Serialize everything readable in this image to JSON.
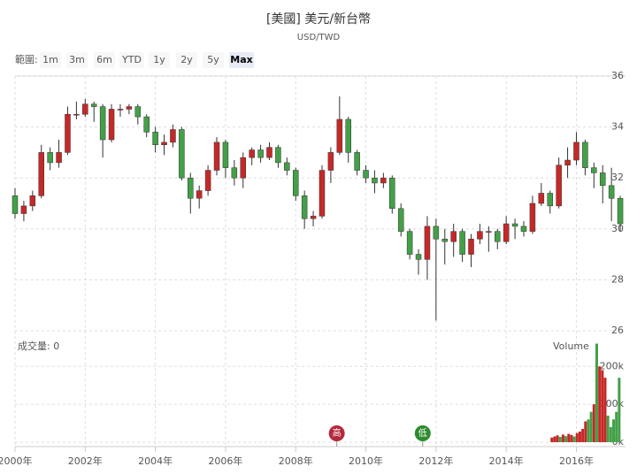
{
  "chart_data": {
    "type": "candlestick",
    "title": "[美國] 美元/新台幣",
    "subtitle": "USD/TWD",
    "range_label": "範圍:",
    "range_buttons": [
      "1m",
      "3m",
      "6m",
      "YTD",
      "1y",
      "2y",
      "5y",
      "Max"
    ],
    "selected_range": "Max",
    "up_color": "#c62828",
    "down_color": "#43a047",
    "x": [
      2000.0,
      2000.25,
      2000.5,
      2000.75,
      2001.0,
      2001.25,
      2001.5,
      2001.75,
      2002.0,
      2002.25,
      2002.5,
      2002.75,
      2003.0,
      2003.25,
      2003.5,
      2003.75,
      2004.0,
      2004.25,
      2004.5,
      2004.75,
      2005.0,
      2005.25,
      2005.5,
      2005.75,
      2006.0,
      2006.25,
      2006.5,
      2006.75,
      2007.0,
      2007.25,
      2007.5,
      2007.75,
      2008.0,
      2008.25,
      2008.5,
      2008.75,
      2009.0,
      2009.25,
      2009.5,
      2009.75,
      2010.0,
      2010.25,
      2010.5,
      2010.75,
      2011.0,
      2011.25,
      2011.5,
      2011.75,
      2012.0,
      2012.25,
      2012.5,
      2012.75,
      2013.0,
      2013.25,
      2013.5,
      2013.75,
      2014.0,
      2014.25,
      2014.5,
      2014.75,
      2015.0,
      2015.25,
      2015.5,
      2015.75,
      2016.0,
      2016.25,
      2016.5,
      2016.75,
      2017.0,
      2017.25
    ],
    "open": [
      31.3,
      30.6,
      30.9,
      31.3,
      33.0,
      32.6,
      33.0,
      34.5,
      34.5,
      34.9,
      34.8,
      33.5,
      34.7,
      34.7,
      34.8,
      34.4,
      33.8,
      33.3,
      33.4,
      33.9,
      32.0,
      31.2,
      31.5,
      32.3,
      33.4,
      32.4,
      32.0,
      32.8,
      33.1,
      32.8,
      33.2,
      32.6,
      32.3,
      31.3,
      30.4,
      30.5,
      32.3,
      33.0,
      34.3,
      33.0,
      32.3,
      32.0,
      31.8,
      32.0,
      30.8,
      29.9,
      29.0,
      28.8,
      30.1,
      29.6,
      29.5,
      29.9,
      29.0,
      29.6,
      29.9,
      29.9,
      29.5,
      30.2,
      30.1,
      29.9,
      31.0,
      31.4,
      30.9,
      32.5,
      32.7,
      33.4,
      32.4,
      32.2,
      31.7,
      31.2
    ],
    "high": [
      31.6,
      31.1,
      31.5,
      33.3,
      33.2,
      33.5,
      34.8,
      35.0,
      35.1,
      35.0,
      34.9,
      34.9,
      34.9,
      34.9,
      34.9,
      34.5,
      34.0,
      33.7,
      34.1,
      34.0,
      32.2,
      31.7,
      32.5,
      33.6,
      33.5,
      32.7,
      33.0,
      33.2,
      33.3,
      33.4,
      33.3,
      32.8,
      32.4,
      31.5,
      30.7,
      32.5,
      33.2,
      35.2,
      34.4,
      33.1,
      32.5,
      32.3,
      32.2,
      32.1,
      31.0,
      30.0,
      29.2,
      30.5,
      30.4,
      30.0,
      30.2,
      30.0,
      29.8,
      30.2,
      30.1,
      30.0,
      30.5,
      30.4,
      30.3,
      31.3,
      31.8,
      31.5,
      32.8,
      33.2,
      33.8,
      33.5,
      32.6,
      32.5,
      32.4,
      31.3
    ],
    "low": [
      30.4,
      30.3,
      30.7,
      31.2,
      32.3,
      32.4,
      32.9,
      34.3,
      34.4,
      34.2,
      32.8,
      33.4,
      34.4,
      34.5,
      34.1,
      33.6,
      33.0,
      32.9,
      33.2,
      31.9,
      30.6,
      30.8,
      31.3,
      32.1,
      32.0,
      31.7,
      31.6,
      32.5,
      32.6,
      32.7,
      32.4,
      32.1,
      31.1,
      30.0,
      30.1,
      30.4,
      31.8,
      32.9,
      32.6,
      32.1,
      31.8,
      31.4,
      31.6,
      30.6,
      29.7,
      28.8,
      28.2,
      28.0,
      26.4,
      28.6,
      28.9,
      28.7,
      28.5,
      29.4,
      29.1,
      29.2,
      29.4,
      29.6,
      29.7,
      29.8,
      30.9,
      30.6,
      30.8,
      32.0,
      32.5,
      32.1,
      31.6,
      31.0,
      30.3,
      29.9
    ],
    "close": [
      30.6,
      30.9,
      31.3,
      33.0,
      32.6,
      33.0,
      34.5,
      34.5,
      34.9,
      34.8,
      33.5,
      34.7,
      34.7,
      34.8,
      34.4,
      33.8,
      33.3,
      33.4,
      33.9,
      32.0,
      31.2,
      31.5,
      32.3,
      33.4,
      32.4,
      32.0,
      32.8,
      33.1,
      32.8,
      33.2,
      32.6,
      32.3,
      31.3,
      30.4,
      30.5,
      32.3,
      33.0,
      34.3,
      33.0,
      32.3,
      32.0,
      31.8,
      32.0,
      30.8,
      29.9,
      29.0,
      28.8,
      30.1,
      29.6,
      29.5,
      29.9,
      29.0,
      29.6,
      29.9,
      29.9,
      29.5,
      30.2,
      30.1,
      29.9,
      31.0,
      31.4,
      30.9,
      32.5,
      32.7,
      33.4,
      32.4,
      32.2,
      31.7,
      31.2,
      30.2
    ],
    "xlim": [
      2000,
      2017.4
    ],
    "xticks": [
      {
        "value": 2000,
        "label": "2000年"
      },
      {
        "value": 2002,
        "label": "2002年"
      },
      {
        "value": 2004,
        "label": "2004年"
      },
      {
        "value": 2006,
        "label": "2006年"
      },
      {
        "value": 2008,
        "label": "2008年"
      },
      {
        "value": 2010,
        "label": "2010年"
      },
      {
        "value": 2012,
        "label": "2012年"
      },
      {
        "value": 2014,
        "label": "2014年"
      },
      {
        "value": 2016,
        "label": "2016年"
      }
    ],
    "ylim": [
      26,
      36
    ],
    "yticks": [
      26,
      28,
      30,
      32,
      34,
      36
    ],
    "grid": true,
    "volume": {
      "label": "成交量: 0",
      "name": "Volume",
      "x": [
        2015.3,
        2015.38,
        2015.46,
        2015.54,
        2015.62,
        2015.7,
        2015.78,
        2015.86,
        2015.94,
        2016.02,
        2016.1,
        2016.18,
        2016.26,
        2016.34,
        2016.42,
        2016.5,
        2016.58,
        2016.66,
        2016.74,
        2016.82,
        2016.9,
        2016.98,
        2017.06,
        2017.14,
        2017.22
      ],
      "values": [
        12000,
        15000,
        18000,
        14000,
        20000,
        16000,
        22000,
        19000,
        15000,
        24000,
        28000,
        35000,
        55000,
        60000,
        80000,
        100000,
        260000,
        200000,
        190000,
        170000,
        70000,
        40000,
        60000,
        80000,
        170000
      ],
      "colors": [
        "#c62828",
        "#c62828",
        "#c62828",
        "#43a047",
        "#c62828",
        "#43a047",
        "#c62828",
        "#c62828",
        "#43a047",
        "#c62828",
        "#c62828",
        "#c62828",
        "#c62828",
        "#43a047",
        "#43a047",
        "#c62828",
        "#43a047",
        "#c62828",
        "#c62828",
        "#c62828",
        "#43a047",
        "#43a047",
        "#43a047",
        "#43a047",
        "#43a047"
      ],
      "ylim": [
        0,
        280000
      ],
      "yticks": [
        {
          "value": 0,
          "label": "0k"
        },
        {
          "value": 100000,
          "label": "100k"
        },
        {
          "value": 200000,
          "label": "200k"
        }
      ]
    },
    "flags": [
      {
        "x": 2009.17,
        "label": "高",
        "color": "#b5283b"
      },
      {
        "x": 2011.62,
        "label": "低",
        "color": "#2e8b2e"
      }
    ]
  }
}
